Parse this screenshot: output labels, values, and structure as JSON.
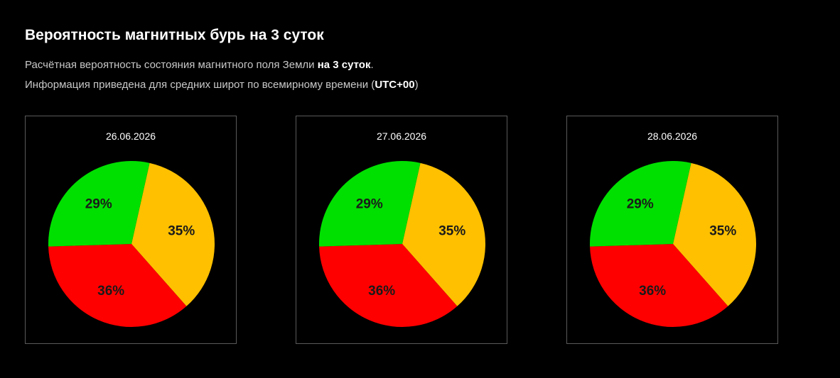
{
  "header": {
    "title": "Вероятность магнитных бурь на 3 суток",
    "line1_prefix": "Расчётная вероятность состояния магнитного поля Земли ",
    "line1_bold": "на 3 суток",
    "line1_suffix": ".",
    "line2_prefix": "Информация приведена для средних широт по всемирному времени (",
    "line2_bold": "UTC+00",
    "line2_suffix": ")"
  },
  "colors": {
    "green": "#00e000",
    "yellow": "#ffc000",
    "red": "#ff0000"
  },
  "chart_data": [
    {
      "type": "pie",
      "title": "26.06.2026",
      "slices": [
        {
          "label": "35%",
          "value": 35,
          "color": "#ffc000"
        },
        {
          "label": "36%",
          "value": 36,
          "color": "#ff0000"
        },
        {
          "label": "29%",
          "value": 29,
          "color": "#00e000"
        }
      ]
    },
    {
      "type": "pie",
      "title": "27.06.2026",
      "slices": [
        {
          "label": "35%",
          "value": 35,
          "color": "#ffc000"
        },
        {
          "label": "36%",
          "value": 36,
          "color": "#ff0000"
        },
        {
          "label": "29%",
          "value": 29,
          "color": "#00e000"
        }
      ]
    },
    {
      "type": "pie",
      "title": "28.06.2026",
      "slices": [
        {
          "label": "35%",
          "value": 35,
          "color": "#ffc000"
        },
        {
          "label": "36%",
          "value": 36,
          "color": "#ff0000"
        },
        {
          "label": "29%",
          "value": 29,
          "color": "#00e000"
        }
      ]
    }
  ]
}
